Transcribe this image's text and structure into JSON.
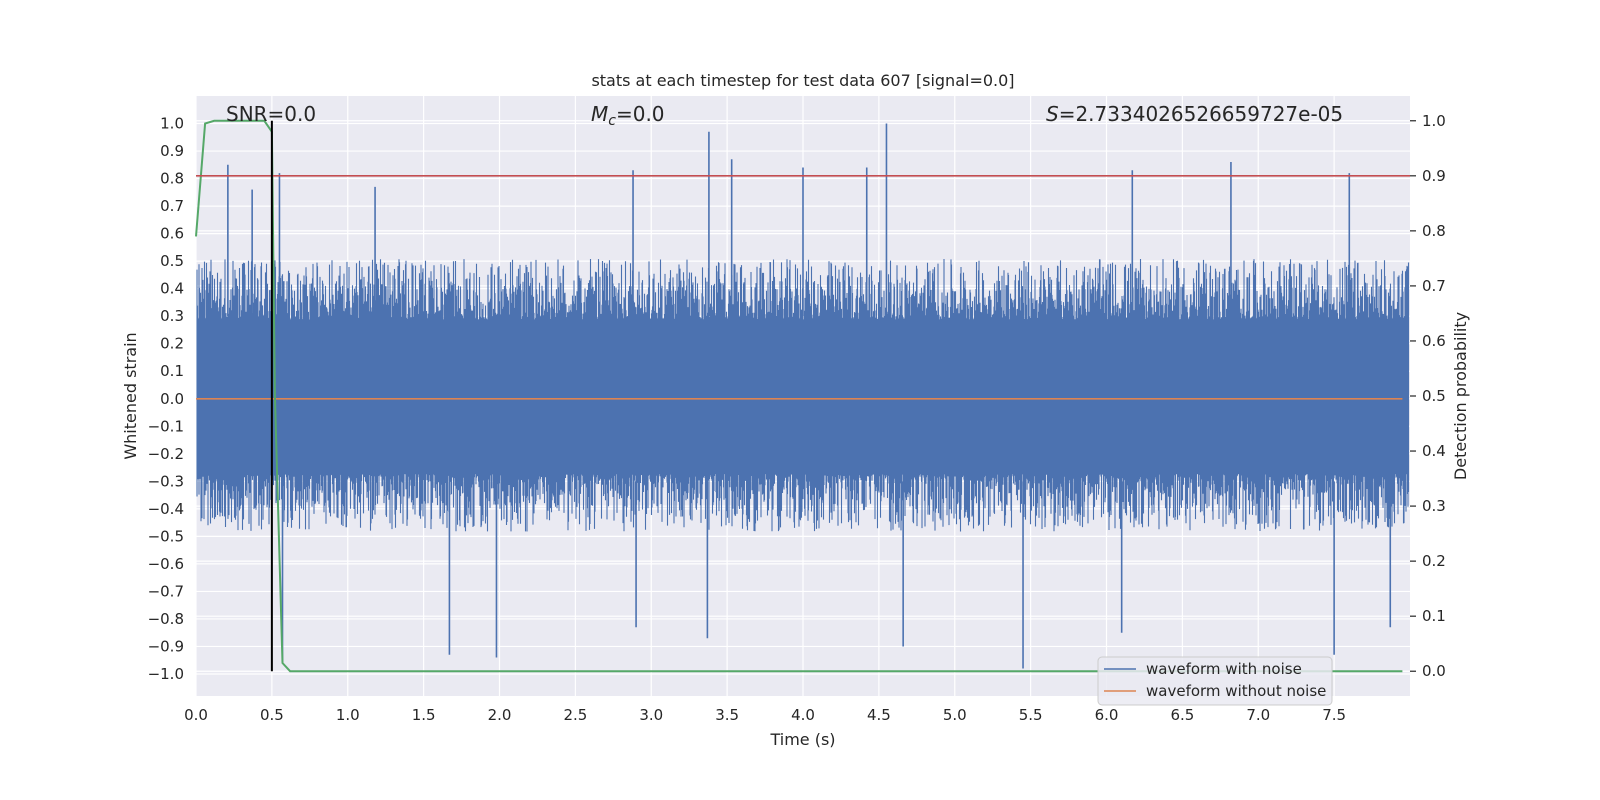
{
  "chart_data": {
    "type": "line",
    "title": "stats at each timestep for test data 607 [signal=0.0]",
    "xlabel": "Time (s)",
    "ylabel_left": "Whitened strain",
    "ylabel_right": "Detection probability",
    "xlim": [
      0.0,
      8.0
    ],
    "ylim_left": [
      -1.08,
      1.1
    ],
    "ylim_right": [
      -0.045,
      1.045
    ],
    "x_ticks": [
      0.0,
      0.5,
      1.0,
      1.5,
      2.0,
      2.5,
      3.0,
      3.5,
      4.0,
      4.5,
      5.0,
      5.5,
      6.0,
      6.5,
      7.0,
      7.5
    ],
    "x_tick_labels": [
      "0.0",
      "0.5",
      "1.0",
      "1.5",
      "2.0",
      "2.5",
      "3.0",
      "3.5",
      "4.0",
      "4.5",
      "5.0",
      "5.5",
      "6.0",
      "6.5",
      "7.0",
      "7.5"
    ],
    "y_left_ticks": [
      1.0,
      0.9,
      0.8,
      0.7,
      0.6,
      0.5,
      0.4,
      0.3,
      0.2,
      0.1,
      0.0,
      -0.1,
      -0.2,
      -0.3,
      -0.4,
      -0.5,
      -0.6,
      -0.7,
      -0.8,
      -0.9,
      -1.0
    ],
    "y_left_tick_labels": [
      "1.0",
      "0.9",
      "0.8",
      "0.7",
      "0.6",
      "0.5",
      "0.4",
      "0.3",
      "0.2",
      "0.1",
      "0.0",
      "−0.1",
      "−0.2",
      "−0.3",
      "−0.4",
      "−0.5",
      "−0.6",
      "−0.7",
      "−0.8",
      "−0.9",
      "−1.0"
    ],
    "y_right_ticks": [
      1.0,
      0.9,
      0.8,
      0.7,
      0.6,
      0.5,
      0.4,
      0.3,
      0.2,
      0.1,
      0.0
    ],
    "y_right_tick_labels": [
      "1.0",
      "0.9",
      "0.8",
      "0.7",
      "0.6",
      "0.5",
      "0.4",
      "0.3",
      "0.2",
      "0.1",
      "0.0"
    ],
    "annotations": {
      "snr": "SNR=0.0",
      "mc_symbol": "M",
      "mc_sub": "c",
      "mc_value": "=0.0",
      "s_symbol": "S",
      "s_value": "=2.7334026526659727e-05"
    },
    "threshold": 0.9,
    "vline_x": 0.5,
    "noise": {
      "name": "waveform with noise",
      "color": "#4c72b0",
      "amplitude_max": 1.0,
      "amplitude_min": -1.0,
      "envelope_top": 0.4,
      "envelope_bottom": -0.38,
      "peaks": [
        {
          "x": 0.21,
          "y": 0.85
        },
        {
          "x": 0.37,
          "y": 0.76
        },
        {
          "x": 0.5,
          "y": 0.78
        },
        {
          "x": 0.55,
          "y": 0.82
        },
        {
          "x": 1.18,
          "y": 0.77
        },
        {
          "x": 2.88,
          "y": 0.83
        },
        {
          "x": 3.38,
          "y": 0.97
        },
        {
          "x": 3.53,
          "y": 0.87
        },
        {
          "x": 4.0,
          "y": 0.84
        },
        {
          "x": 4.42,
          "y": 0.84
        },
        {
          "x": 4.55,
          "y": 1.0
        },
        {
          "x": 6.17,
          "y": 0.83
        },
        {
          "x": 6.82,
          "y": 0.86
        },
        {
          "x": 7.6,
          "y": 0.82
        }
      ],
      "troughs": [
        {
          "x": 1.67,
          "y": -0.93
        },
        {
          "x": 1.98,
          "y": -0.94
        },
        {
          "x": 2.9,
          "y": -0.83
        },
        {
          "x": 3.37,
          "y": -0.87
        },
        {
          "x": 4.66,
          "y": -0.9
        },
        {
          "x": 5.45,
          "y": -0.98
        },
        {
          "x": 6.1,
          "y": -0.85
        },
        {
          "x": 7.5,
          "y": -0.93
        },
        {
          "x": 7.87,
          "y": -0.83
        },
        {
          "x": 0.57,
          "y": -0.96
        }
      ]
    },
    "clean": {
      "name": "waveform without noise",
      "color": "#dd8452",
      "x": [
        0.0,
        7.95
      ],
      "y": [
        0.0,
        0.0
      ]
    },
    "probability": {
      "name": "detection probability",
      "color": "#55a868",
      "x": [
        0.0,
        0.06,
        0.12,
        0.45,
        0.5,
        0.52,
        0.57,
        0.62,
        7.95
      ],
      "y": [
        0.79,
        0.995,
        1.0,
        1.0,
        0.98,
        0.5,
        0.015,
        0.0,
        0.0
      ]
    },
    "legend": {
      "placement": "lower-right",
      "entries": [
        "waveform with noise",
        "waveform without noise"
      ]
    }
  }
}
